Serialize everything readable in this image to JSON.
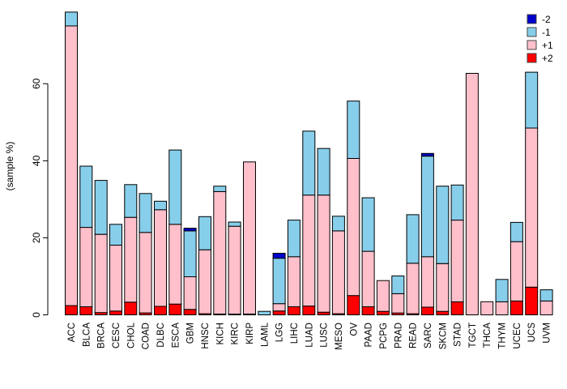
{
  "chart_data": {
    "type": "bar",
    "subtype": "stacked-vertical",
    "title": "",
    "xlabel": "",
    "ylabel": "(sample %)",
    "grid": false,
    "ylim": [
      0,
      79
    ],
    "yticks": [
      0,
      20,
      40,
      60
    ],
    "legend_position": "top-right",
    "categories": [
      "ACC",
      "BLCA",
      "BRCA",
      "CESC",
      "CHOL",
      "COAD",
      "DLBC",
      "ESCA",
      "GBM",
      "HNSC",
      "KICH",
      "KIRC",
      "KIRP",
      "LAML",
      "LGG",
      "LIHC",
      "LUAD",
      "LUSC",
      "MESO",
      "OV",
      "PAAD",
      "PCPG",
      "PRAD",
      "READ",
      "SARC",
      "SKCM",
      "STAD",
      "TGCT",
      "THCA",
      "THYM",
      "UCEC",
      "UCS",
      "UVM"
    ],
    "stack_order_bottom_to_top": [
      "+2",
      "+1",
      "-1",
      "-2"
    ],
    "series": [
      {
        "name": "+2",
        "color": "#ff0000",
        "values": [
          2.4,
          2.1,
          0.6,
          1.0,
          3.3,
          0.5,
          2.2,
          2.8,
          1.4,
          0.3,
          0.2,
          0.2,
          0.2,
          0,
          1.0,
          2.1,
          2.3,
          0.7,
          0.3,
          5.0,
          2.1,
          0.9,
          0.5,
          0.3,
          2.0,
          0.9,
          3.4,
          0,
          0,
          0,
          3.6,
          7.2,
          0
        ]
      },
      {
        "name": "+1",
        "color": "#ffc0cb",
        "values": [
          72.6,
          20.6,
          20.3,
          17.1,
          22.0,
          20.9,
          25.1,
          20.7,
          8.5,
          16.6,
          31.8,
          22.8,
          39.5,
          0,
          1.9,
          13.0,
          28.8,
          30.4,
          21.5,
          35.6,
          14.4,
          8.0,
          5.0,
          13.1,
          13.1,
          12.4,
          21.2,
          62.7,
          3.4,
          3.4,
          15.4,
          41.3,
          3.6
        ]
      },
      {
        "name": "-1",
        "color": "#87ceeb",
        "values": [
          3.6,
          15.9,
          14.0,
          5.4,
          8.5,
          10.1,
          2.2,
          19.3,
          11.9,
          8.6,
          1.4,
          1.1,
          0,
          0.9,
          11.8,
          9.5,
          16.6,
          12.1,
          3.8,
          14.9,
          13.9,
          0,
          4.6,
          12.6,
          26.1,
          20.1,
          9.1,
          0,
          0,
          5.8,
          5.0,
          14.5,
          2.9
        ]
      },
      {
        "name": "-2",
        "color": "#0000cd",
        "values": [
          0,
          0,
          0,
          0,
          0,
          0,
          0,
          0,
          0.7,
          0,
          0,
          0,
          0,
          0,
          1.3,
          0,
          0,
          0,
          0,
          0,
          0,
          0,
          0,
          0,
          0.7,
          0,
          0,
          0,
          0,
          0,
          0,
          0,
          0
        ]
      }
    ],
    "legend_entries": [
      {
        "label": "-2",
        "color": "#0000cd"
      },
      {
        "label": "-1",
        "color": "#87ceeb"
      },
      {
        "label": "+1",
        "color": "#ffc0cb"
      },
      {
        "label": "+2",
        "color": "#ff0000"
      }
    ]
  }
}
